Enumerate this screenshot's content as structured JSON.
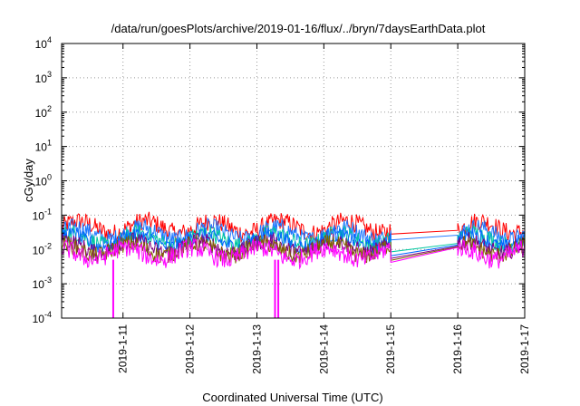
{
  "chart_data": {
    "type": "line",
    "title": "/data/run/goesPlots/archive/2019-01-16/flux/../bryn/7daysEarthData.plot",
    "xlabel": "Coordinated Universal Time (UTC)",
    "ylabel": "cGy/day",
    "yscale": "log",
    "ylim": [
      0.0001,
      10000
    ],
    "xlim": [
      "2019-01-10T02:00",
      "2019-01-17T00:00"
    ],
    "grid": true,
    "x_ticks": [
      "2019-1-11",
      "2019-1-12",
      "2019-1-13",
      "2019-1-14",
      "2019-1-15",
      "2019-1-16",
      "2019-1-17"
    ],
    "y_ticks": [
      {
        "value": 0.0001,
        "base": "10",
        "exp": "-4"
      },
      {
        "value": 0.001,
        "base": "10",
        "exp": "-3"
      },
      {
        "value": 0.01,
        "base": "10",
        "exp": "-2"
      },
      {
        "value": 0.1,
        "base": "10",
        "exp": "-1"
      },
      {
        "value": 1,
        "base": "10",
        "exp": "0"
      },
      {
        "value": 10,
        "base": "10",
        "exp": "1"
      },
      {
        "value": 100,
        "base": "10",
        "exp": "2"
      },
      {
        "value": 1000,
        "base": "10",
        "exp": "3"
      },
      {
        "value": 10000,
        "base": "10",
        "exp": "4"
      }
    ],
    "data_gap": {
      "start": "2019-01-15T00:00",
      "end": "2019-01-16T00:00"
    },
    "series": [
      {
        "color": "#ff0000",
        "level": 0.045,
        "spread": 0.55,
        "gap_values": [
          0.028,
          0.036
        ]
      },
      {
        "color": "#1f78ff",
        "level": 0.03,
        "spread": 0.5,
        "gap_values": [
          0.019,
          0.026
        ]
      },
      {
        "color": "#00c8a0",
        "level": 0.02,
        "spread": 0.5,
        "gap_values": [
          0.0085,
          0.015
        ]
      },
      {
        "color": "#0066ff",
        "level": 0.018,
        "spread": 0.45,
        "gap_values": [
          0.0065,
          0.0135
        ]
      },
      {
        "color": "#800080",
        "level": 0.012,
        "spread": 0.5,
        "gap_values": [
          0.0055,
          0.0125
        ]
      },
      {
        "color": "#806000",
        "level": 0.01,
        "spread": 0.5,
        "gap_values": [
          0.0048,
          0.012
        ]
      },
      {
        "color": "#ff00ff",
        "level": 0.0075,
        "spread": 0.55,
        "gap_values": [
          0.0042,
          0.0115
        ]
      }
    ],
    "dropouts": [
      {
        "time": "2019-01-10T20:30",
        "value": 0.0001
      },
      {
        "time": "2019-01-13T06:30",
        "value": 0.0001
      },
      {
        "time": "2019-01-13T07:40",
        "value": 0.0001
      }
    ]
  }
}
